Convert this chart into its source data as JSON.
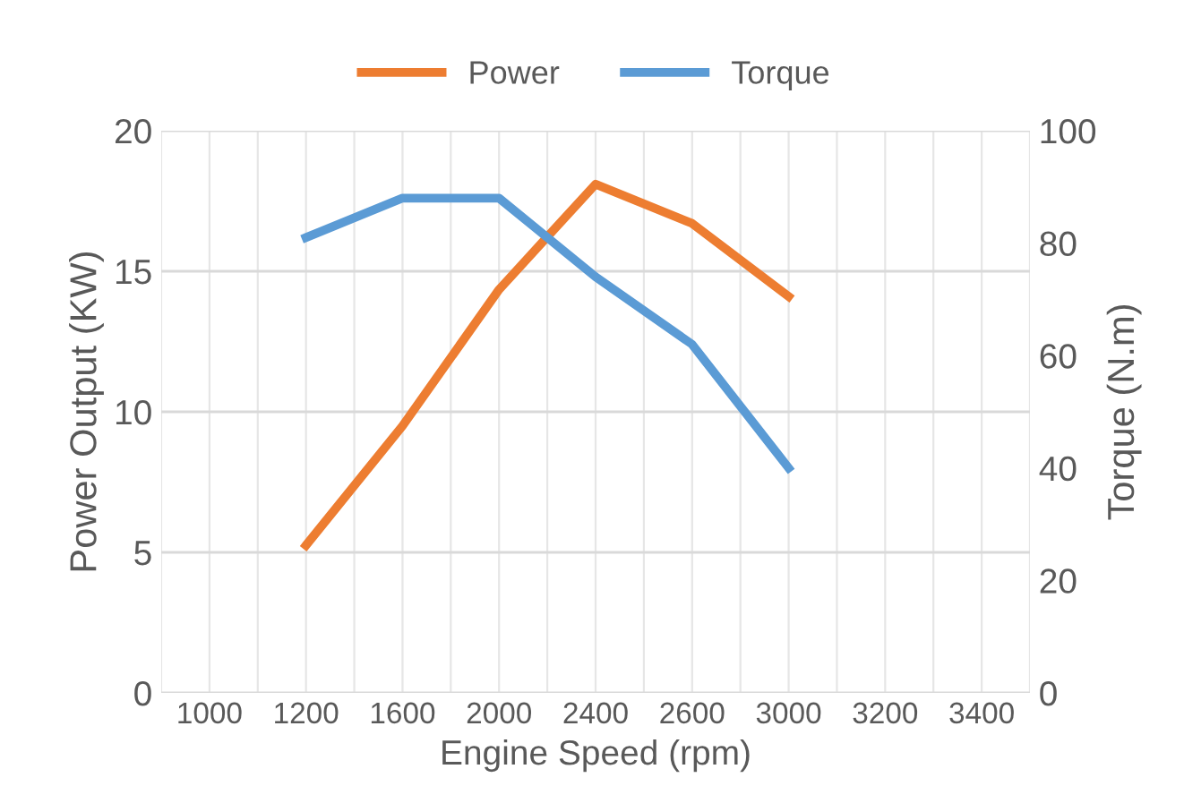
{
  "chart_data": {
    "type": "line",
    "xlabel": "Engine Speed (rpm)",
    "ylabel": "Power Output (KW)",
    "y2label": "Torque (N.m)",
    "categories": [
      "1000",
      "1200",
      "1600",
      "2000",
      "2400",
      "2600",
      "3000",
      "3200",
      "3400"
    ],
    "series": [
      {
        "name": "Power",
        "color": "#ed7d31",
        "values": [
          null,
          5.25,
          9.5,
          14.35,
          18.1,
          16.7,
          14.1,
          null,
          null
        ]
      },
      {
        "name": "Torque",
        "color": "#5b9bd5",
        "axis": "y2",
        "values": [
          null,
          81,
          88,
          88,
          74,
          62,
          40,
          null,
          null
        ]
      }
    ],
    "ylim": [
      0,
      20
    ],
    "yticks": [
      0,
      5,
      10,
      15,
      20
    ],
    "y2lim": [
      0,
      100
    ],
    "y2ticks": [
      0,
      20,
      40,
      60,
      80,
      100
    ],
    "grid": true,
    "legend": "top",
    "marker": "none",
    "line_style": "solid"
  }
}
